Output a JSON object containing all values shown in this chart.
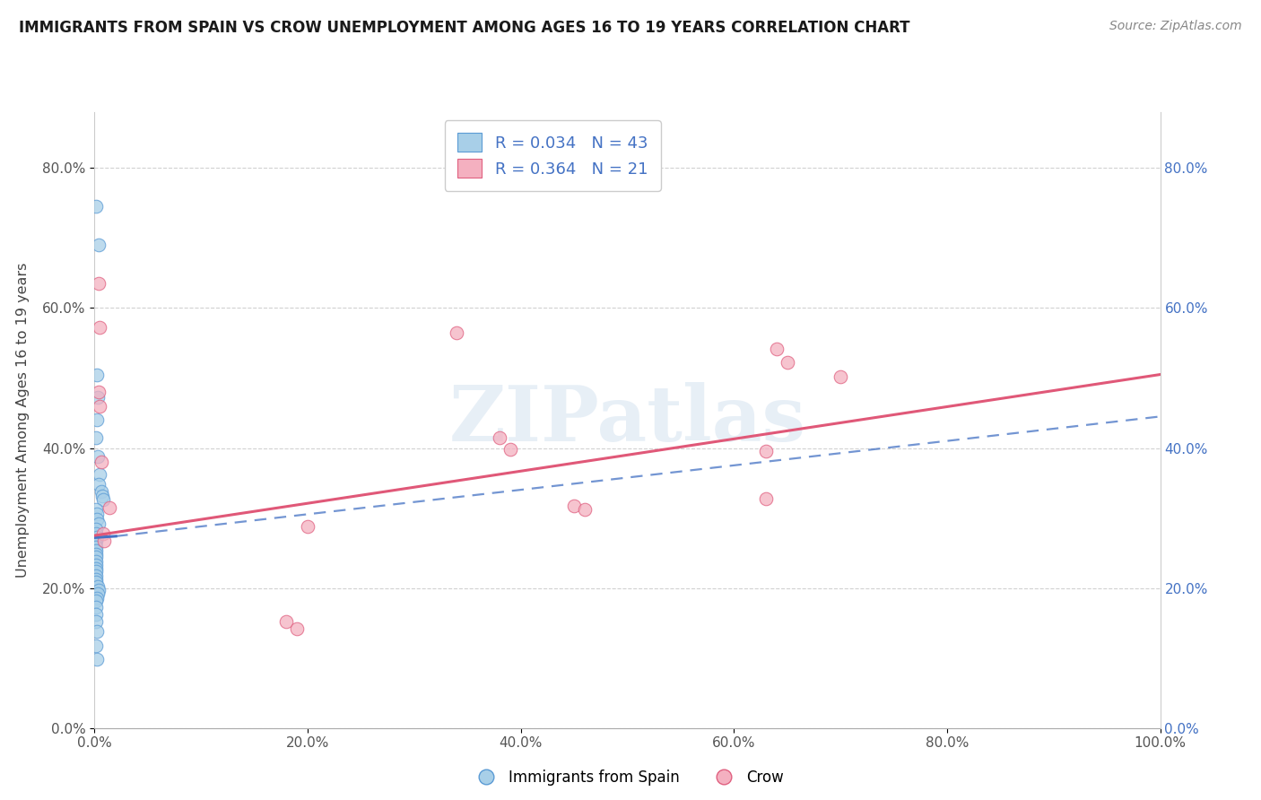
{
  "title": "IMMIGRANTS FROM SPAIN VS CROW UNEMPLOYMENT AMONG AGES 16 TO 19 YEARS CORRELATION CHART",
  "source": "Source: ZipAtlas.com",
  "ylabel": "Unemployment Among Ages 16 to 19 years",
  "xlim": [
    0.0,
    1.0
  ],
  "ylim": [
    0.0,
    0.88
  ],
  "xtick_vals": [
    0.0,
    0.2,
    0.4,
    0.6,
    0.8,
    1.0
  ],
  "xtick_labels": [
    "0.0%",
    "20.0%",
    "40.0%",
    "60.0%",
    "80.0%",
    "100.0%"
  ],
  "ytick_vals": [
    0.0,
    0.2,
    0.4,
    0.6,
    0.8
  ],
  "ytick_labels": [
    "0.0%",
    "20.0%",
    "40.0%",
    "60.0%",
    "80.0%"
  ],
  "color_blue": "#a8cfe8",
  "color_pink": "#f4b0c0",
  "edge_blue": "#5b9bd5",
  "edge_pink": "#e06080",
  "line_blue": "#4472c4",
  "line_pink": "#e05878",
  "watermark_text": "ZIPatlas",
  "legend_text_color": "#4472c4",
  "blue_trend_solid": [
    0.0,
    0.272,
    0.02,
    0.274
  ],
  "blue_trend_dashed": [
    0.02,
    0.274,
    1.0,
    0.445
  ],
  "pink_trend": [
    0.0,
    0.275,
    1.0,
    0.505
  ],
  "scatter_blue": [
    [
      0.001,
      0.745
    ],
    [
      0.004,
      0.69
    ],
    [
      0.002,
      0.505
    ],
    [
      0.003,
      0.472
    ],
    [
      0.002,
      0.44
    ],
    [
      0.001,
      0.415
    ],
    [
      0.003,
      0.388
    ],
    [
      0.005,
      0.362
    ],
    [
      0.004,
      0.348
    ],
    [
      0.006,
      0.338
    ],
    [
      0.007,
      0.332
    ],
    [
      0.008,
      0.326
    ],
    [
      0.001,
      0.312
    ],
    [
      0.002,
      0.306
    ],
    [
      0.002,
      0.298
    ],
    [
      0.004,
      0.292
    ],
    [
      0.001,
      0.284
    ],
    [
      0.001,
      0.278
    ],
    [
      0.002,
      0.272
    ],
    [
      0.001,
      0.268
    ],
    [
      0.0005,
      0.264
    ],
    [
      0.001,
      0.258
    ],
    [
      0.001,
      0.253
    ],
    [
      0.001,
      0.248
    ],
    [
      0.001,
      0.244
    ],
    [
      0.001,
      0.238
    ],
    [
      0.001,
      0.233
    ],
    [
      0.001,
      0.228
    ],
    [
      0.001,
      0.224
    ],
    [
      0.001,
      0.218
    ],
    [
      0.001,
      0.212
    ],
    [
      0.001,
      0.208
    ],
    [
      0.003,
      0.202
    ],
    [
      0.004,
      0.197
    ],
    [
      0.003,
      0.192
    ],
    [
      0.002,
      0.186
    ],
    [
      0.001,
      0.182
    ],
    [
      0.001,
      0.172
    ],
    [
      0.001,
      0.162
    ],
    [
      0.001,
      0.152
    ],
    [
      0.002,
      0.138
    ],
    [
      0.001,
      0.118
    ],
    [
      0.002,
      0.098
    ]
  ],
  "scatter_pink": [
    [
      0.004,
      0.635
    ],
    [
      0.005,
      0.572
    ],
    [
      0.34,
      0.565
    ],
    [
      0.004,
      0.48
    ],
    [
      0.005,
      0.46
    ],
    [
      0.006,
      0.38
    ],
    [
      0.38,
      0.415
    ],
    [
      0.39,
      0.398
    ],
    [
      0.014,
      0.315
    ],
    [
      0.63,
      0.395
    ],
    [
      0.63,
      0.328
    ],
    [
      0.64,
      0.542
    ],
    [
      0.65,
      0.522
    ],
    [
      0.7,
      0.502
    ],
    [
      0.45,
      0.318
    ],
    [
      0.46,
      0.312
    ],
    [
      0.18,
      0.152
    ],
    [
      0.19,
      0.142
    ],
    [
      0.2,
      0.288
    ],
    [
      0.008,
      0.278
    ],
    [
      0.009,
      0.268
    ]
  ]
}
